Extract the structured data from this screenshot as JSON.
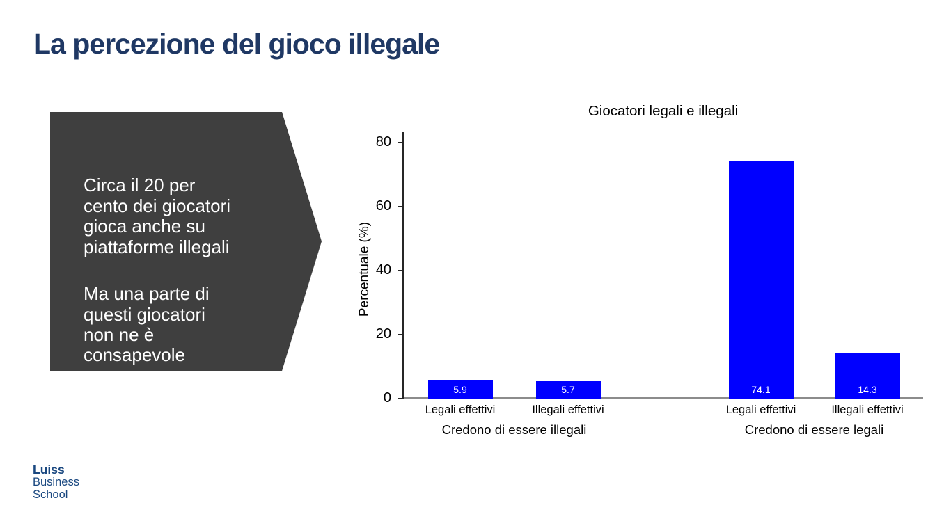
{
  "slide": {
    "title": "La percezione del gioco illegale",
    "callout": {
      "paragraphs": [
        "Circa il 20 per\ncento dei giocatori\ngioca anche su\npiattaforme illegali",
        "Ma una parte di\nquesti giocatori\nnon ne è\nconsapevole"
      ]
    },
    "logo": {
      "lines": [
        "Luiss",
        "Business",
        "School"
      ]
    }
  },
  "chart_data": {
    "type": "bar",
    "title": "Giocatori legali e illegali",
    "xlabel": "",
    "ylabel": "Percentuale (%)",
    "ylim": [
      0,
      80
    ],
    "yticks": [
      0,
      20,
      40,
      60,
      80
    ],
    "grid": "horizontal-dashed",
    "legend": "none",
    "bar_color": "#0000ff",
    "value_label_style": "inside-bottom-white",
    "groups": [
      {
        "label": "Credono di essere illegali",
        "bars": [
          {
            "category": "Legali effettivi",
            "value": 5.9
          },
          {
            "category": "Illegali effettivi",
            "value": 5.7
          }
        ]
      },
      {
        "label": "Credono di essere legali",
        "bars": [
          {
            "category": "Legali effettivi",
            "value": 74.1
          },
          {
            "category": "Illegali effettivi",
            "value": 14.3
          }
        ]
      }
    ]
  },
  "colors": {
    "slide_title": "#1f3864",
    "callout_bg": "#3f3f3f",
    "callout_text": "#ffffff",
    "bar": "#0000ff",
    "axis_dark": "#262626",
    "axis_gray": "#8c8c8c",
    "gridline": "#e4e4e4",
    "logo_blue": "#1a4880"
  }
}
